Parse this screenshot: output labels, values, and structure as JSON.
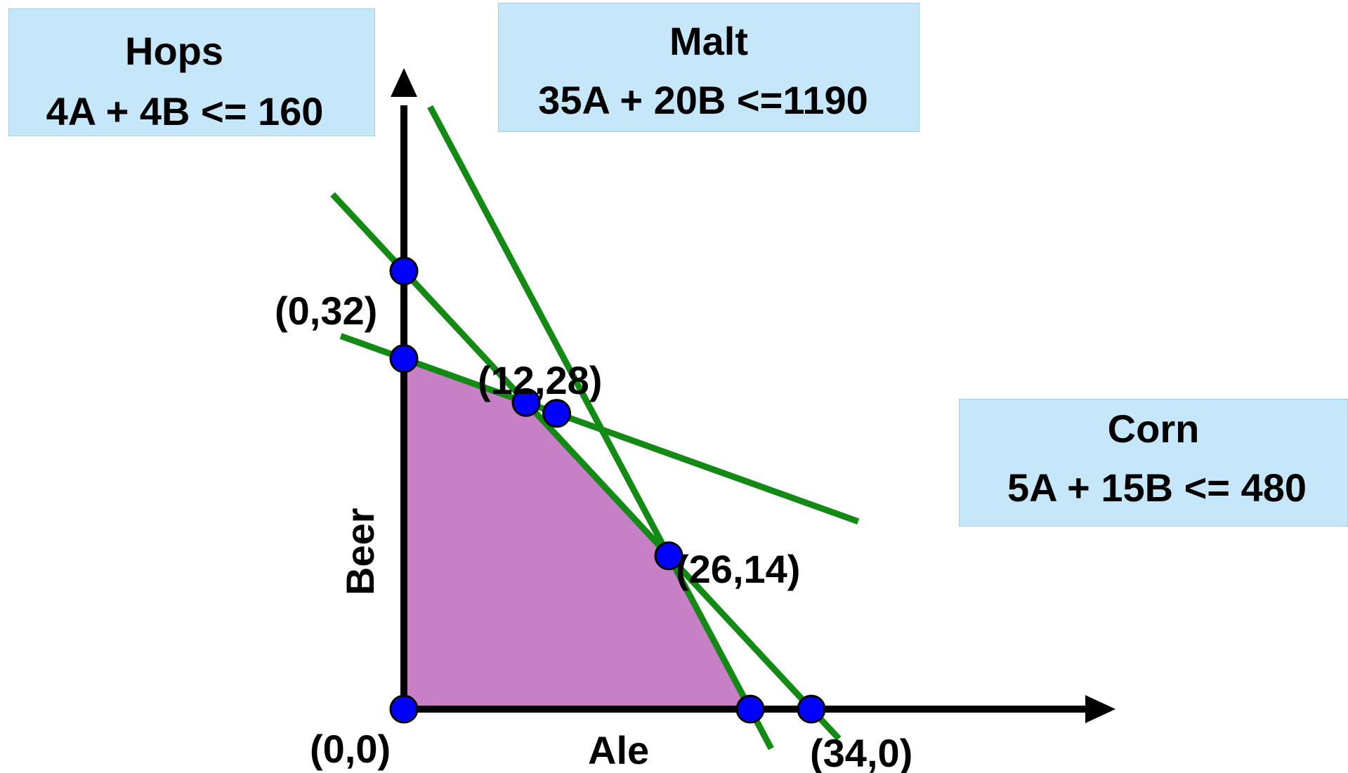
{
  "colors": {
    "feasible_region": "#c77fc6",
    "constraint_line": "#138a13",
    "vertex": "#0000ff",
    "axis": "#000000",
    "label_box": "#c6e6fa"
  },
  "axes": {
    "x_label": "Ale",
    "y_label": "Beer"
  },
  "constraints": {
    "hops": {
      "name": "Hops",
      "equation": "4A + 4B <= 160"
    },
    "malt": {
      "name": "Malt",
      "equation": "35A + 20B <=1190"
    },
    "corn": {
      "name": "Corn",
      "equation": "5A + 15B <= 480"
    }
  },
  "vertex_labels": {
    "origin": "(0,0)",
    "beer_axis": "(0,32)",
    "corn_hops": "(12,28)",
    "hops_malt": "(26,14)",
    "ale_axis": "(34,0)"
  },
  "chart_data": {
    "type": "scatter",
    "xlabel": "Ale",
    "ylabel": "Beer",
    "feasible_region": [
      [
        0,
        0
      ],
      [
        0,
        32
      ],
      [
        12,
        28
      ],
      [
        26,
        14
      ],
      [
        34,
        0
      ]
    ],
    "constraints": [
      {
        "name": "Hops",
        "a": 4,
        "b": 4,
        "rhs": 160
      },
      {
        "name": "Malt",
        "a": 35,
        "b": 20,
        "rhs": 1190
      },
      {
        "name": "Corn",
        "a": 5,
        "b": 15,
        "rhs": 480
      }
    ],
    "points": [
      {
        "x": 0,
        "y": 0,
        "label": "(0,0)"
      },
      {
        "x": 0,
        "y": 32,
        "label": "(0,32)"
      },
      {
        "x": 12,
        "y": 28,
        "label": "(12,28)"
      },
      {
        "x": 26,
        "y": 14,
        "label": "(26,14)"
      },
      {
        "x": 34,
        "y": 0,
        "label": "(34,0)"
      },
      {
        "x": 0,
        "y": 40,
        "label": ""
      },
      {
        "x": 40,
        "y": 0,
        "label": ""
      },
      {
        "x": 15.0,
        "y": 27.0,
        "label": ""
      }
    ]
  }
}
